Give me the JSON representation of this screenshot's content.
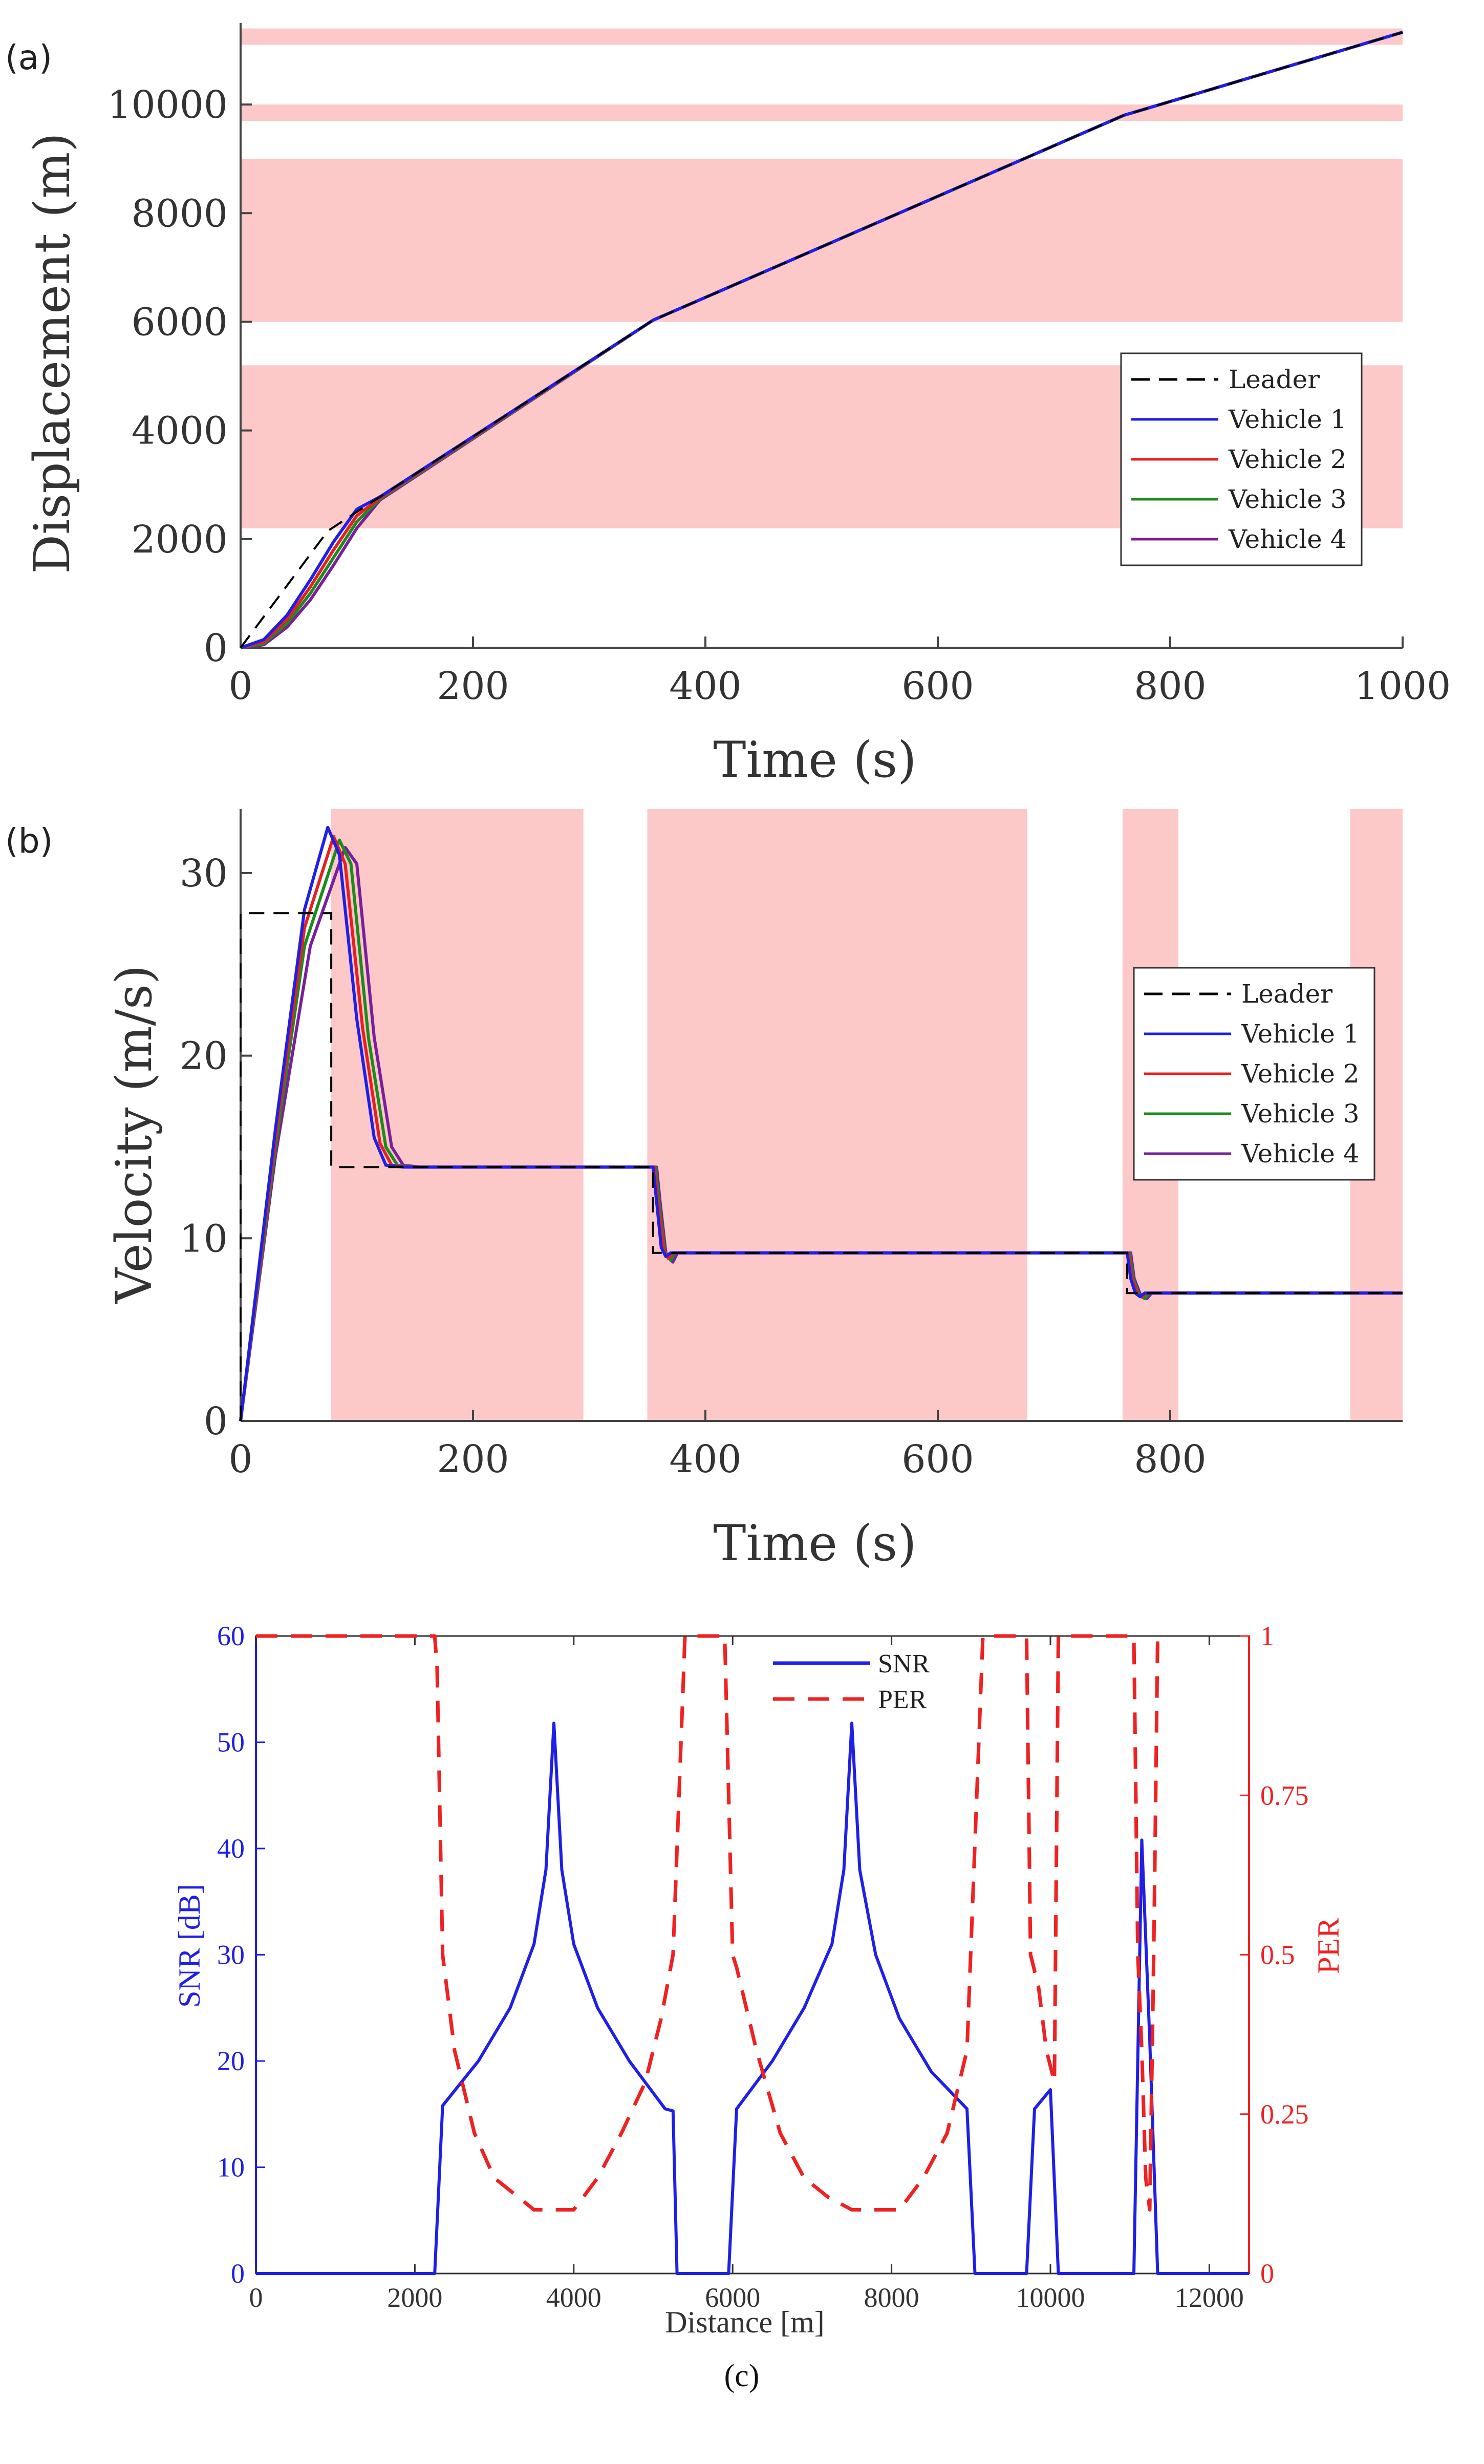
{
  "chart_data": [
    {
      "type": "line",
      "panel": "(a)",
      "xlabel": "Time (s)",
      "ylabel": "Displacement (m)",
      "xlim": [
        0,
        1000
      ],
      "ylim": [
        0,
        11500
      ],
      "xticks": [
        0,
        200,
        400,
        600,
        800,
        1000
      ],
      "yticks": [
        0,
        2000,
        4000,
        6000,
        8000,
        10000
      ],
      "shaded_bands_y": [
        [
          2200,
          5200
        ],
        [
          6000,
          9000
        ],
        [
          9700,
          10000
        ],
        [
          11100,
          11400
        ]
      ],
      "shade_color": "#fcc8c8",
      "legend": [
        "Leader",
        "Vehicle 1",
        "Vehicle 2",
        "Vehicle 3",
        "Vehicle 4"
      ],
      "legend_position": "center-right",
      "series": [
        {
          "name": "Leader",
          "style": "dashed",
          "color": "#000000",
          "x": [
            0,
            75,
            120,
            355,
            760,
            1000
          ],
          "y": [
            0,
            2150,
            2780,
            6030,
            9800,
            11330
          ]
        },
        {
          "name": "Vehicle 1",
          "style": "solid",
          "color": "#1f1fe6",
          "x": [
            0,
            20,
            40,
            60,
            80,
            100,
            120,
            355,
            760,
            1000
          ],
          "y": [
            0,
            150,
            600,
            1250,
            1950,
            2550,
            2780,
            6030,
            9800,
            11330
          ]
        },
        {
          "name": "Vehicle 2",
          "style": "solid",
          "color": "#e62020",
          "x": [
            0,
            20,
            40,
            60,
            80,
            100,
            120,
            355,
            760,
            1000
          ],
          "y": [
            0,
            110,
            520,
            1120,
            1800,
            2430,
            2760,
            6030,
            9800,
            11330
          ]
        },
        {
          "name": "Vehicle 3",
          "style": "solid",
          "color": "#1c8c1c",
          "x": [
            0,
            20,
            40,
            60,
            80,
            100,
            120,
            355,
            760,
            1000
          ],
          "y": [
            0,
            80,
            450,
            1000,
            1660,
            2320,
            2740,
            6030,
            9800,
            11330
          ]
        },
        {
          "name": "Vehicle 4",
          "style": "solid",
          "color": "#7a1f9a",
          "x": [
            0,
            20,
            40,
            60,
            80,
            100,
            120,
            355,
            760,
            1000
          ],
          "y": [
            0,
            55,
            380,
            880,
            1520,
            2200,
            2720,
            6030,
            9800,
            11330
          ]
        }
      ]
    },
    {
      "type": "line",
      "panel": "(b)",
      "xlabel": "Time (s)",
      "ylabel": "Velocity (m/s)",
      "xlim": [
        0,
        1000
      ],
      "ylim": [
        0,
        33.5
      ],
      "xticks": [
        0,
        200,
        400,
        600,
        800
      ],
      "yticks": [
        0,
        10,
        20,
        30
      ],
      "shaded_bands_x": [
        [
          78,
          295
        ],
        [
          350,
          677
        ],
        [
          759,
          807
        ],
        [
          955,
          1000
        ]
      ],
      "shade_color": "#fcc8c8",
      "legend": [
        "Leader",
        "Vehicle 1",
        "Vehicle 2",
        "Vehicle 3",
        "Vehicle 4"
      ],
      "legend_position": "center-right",
      "series": [
        {
          "name": "Leader",
          "style": "dashed",
          "color": "#000000",
          "x": [
            0,
            0,
            78,
            78,
            355,
            355,
            763,
            763,
            1000
          ],
          "y": [
            0,
            27.8,
            27.8,
            13.9,
            13.9,
            9.2,
            9.2,
            7,
            7
          ]
        },
        {
          "name": "Vehicle 1",
          "style": "solid",
          "color": "#1f1fe6",
          "x": [
            0,
            30,
            55,
            75,
            85,
            100,
            115,
            125,
            140,
            355,
            358,
            362,
            366,
            370,
            763,
            766,
            770,
            774,
            778,
            1000
          ],
          "y": [
            0,
            16,
            28,
            32.5,
            31,
            22,
            15.5,
            14,
            13.9,
            13.9,
            12,
            9.5,
            9.0,
            9.2,
            9.2,
            7.8,
            7.0,
            6.8,
            7,
            7
          ]
        },
        {
          "name": "Vehicle 2",
          "style": "solid",
          "color": "#e62020",
          "x": [
            0,
            30,
            55,
            80,
            90,
            105,
            120,
            130,
            145,
            356,
            359,
            364,
            368,
            372,
            764,
            767,
            772,
            776,
            780,
            1000
          ],
          "y": [
            0,
            15.5,
            27,
            32,
            30.5,
            21.5,
            15.2,
            14,
            13.9,
            13.9,
            12,
            9.4,
            8.9,
            9.2,
            9.2,
            7.8,
            6.9,
            6.8,
            7,
            7
          ]
        },
        {
          "name": "Vehicle 3",
          "style": "solid",
          "color": "#1c8c1c",
          "x": [
            0,
            30,
            55,
            85,
            95,
            110,
            125,
            135,
            150,
            357,
            360,
            365,
            370,
            374,
            765,
            768,
            773,
            778,
            782,
            1000
          ],
          "y": [
            0,
            15,
            26,
            31.8,
            30.5,
            21,
            15,
            14,
            13.9,
            13.9,
            12,
            9.3,
            8.8,
            9.2,
            9.2,
            7.8,
            6.9,
            6.7,
            7,
            7
          ]
        },
        {
          "name": "Vehicle 4",
          "style": "solid",
          "color": "#7a1f9a",
          "x": [
            0,
            30,
            60,
            90,
            100,
            115,
            130,
            140,
            155,
            358,
            361,
            366,
            372,
            376,
            766,
            769,
            775,
            780,
            784,
            1000
          ],
          "y": [
            0,
            14.5,
            26,
            31.4,
            30.5,
            21,
            15,
            14,
            13.9,
            13.9,
            12,
            9.2,
            8.7,
            9.2,
            9.2,
            7.8,
            6.8,
            6.7,
            7,
            7
          ]
        }
      ]
    },
    {
      "type": "line",
      "panel": "(c)",
      "xlabel": "Distance [m]",
      "ylabel": "SNR [dB]",
      "ylabel_right": "PER",
      "xlim": [
        0,
        12500
      ],
      "ylim": [
        0,
        60
      ],
      "ylim_right": [
        0,
        1
      ],
      "xticks": [
        0,
        2000,
        4000,
        6000,
        8000,
        10000,
        12000
      ],
      "yticks": [
        0,
        10,
        20,
        30,
        40,
        50,
        60
      ],
      "yticks_right": [
        0,
        0.25,
        0.5,
        0.75,
        1
      ],
      "yticks_right_labels": [
        "0",
        "0.25",
        "0.5",
        "0.75",
        "1"
      ],
      "legend": [
        "SNR",
        "PER"
      ],
      "legend_position": "top-center",
      "series": [
        {
          "name": "SNR",
          "axis": "left",
          "style": "solid",
          "color": "#1f1fe6",
          "x": [
            0,
            2250,
            2350,
            2800,
            3200,
            3500,
            3650,
            3750,
            3850,
            4000,
            4300,
            4700,
            5150,
            5250,
            5300,
            5950,
            6050,
            6500,
            6900,
            7250,
            7400,
            7500,
            7600,
            7800,
            8100,
            8500,
            8950,
            9050,
            9700,
            9800,
            10000,
            10100,
            10200,
            11050,
            11150,
            11250,
            11350,
            12500
          ],
          "y": [
            0,
            0,
            15.8,
            20,
            25,
            31,
            38,
            51.8,
            38,
            31,
            25,
            20,
            15.5,
            15.3,
            0,
            0,
            15.5,
            20,
            25,
            31,
            38,
            51.8,
            38,
            30,
            24,
            19,
            15.5,
            0,
            0,
            15.5,
            17.3,
            0,
            0,
            0,
            40.8,
            22,
            0,
            0
          ]
        },
        {
          "name": "PER",
          "axis": "right",
          "style": "dashed",
          "color": "#ee2222",
          "x": [
            0,
            2250,
            2280,
            2350,
            2500,
            2750,
            3000,
            3300,
            3500,
            3750,
            4000,
            4300,
            4600,
            4900,
            5100,
            5250,
            5400,
            5650,
            5800,
            5900,
            6000,
            6050,
            6300,
            6600,
            6900,
            7200,
            7500,
            7800,
            8100,
            8400,
            8700,
            8950,
            9150,
            9600,
            9700,
            9750,
            9850,
            9950,
            10050,
            10100,
            10150,
            10600,
            11050,
            11100,
            11150,
            11200,
            11250,
            11300,
            11350
          ],
          "y": [
            1,
            1,
            0.95,
            0.5,
            0.35,
            0.22,
            0.15,
            0.12,
            0.1,
            0.1,
            0.1,
            0.15,
            0.22,
            0.3,
            0.4,
            0.5,
            1,
            1,
            1,
            1,
            0.5,
            0.48,
            0.35,
            0.22,
            0.15,
            0.12,
            0.1,
            0.1,
            0.1,
            0.15,
            0.22,
            0.35,
            1,
            1,
            1,
            0.5,
            0.45,
            0.35,
            0.3,
            1,
            1,
            1,
            1,
            0.5,
            0.35,
            0.15,
            0.1,
            0.5,
            1
          ]
        }
      ]
    }
  ],
  "caption": "(c)"
}
